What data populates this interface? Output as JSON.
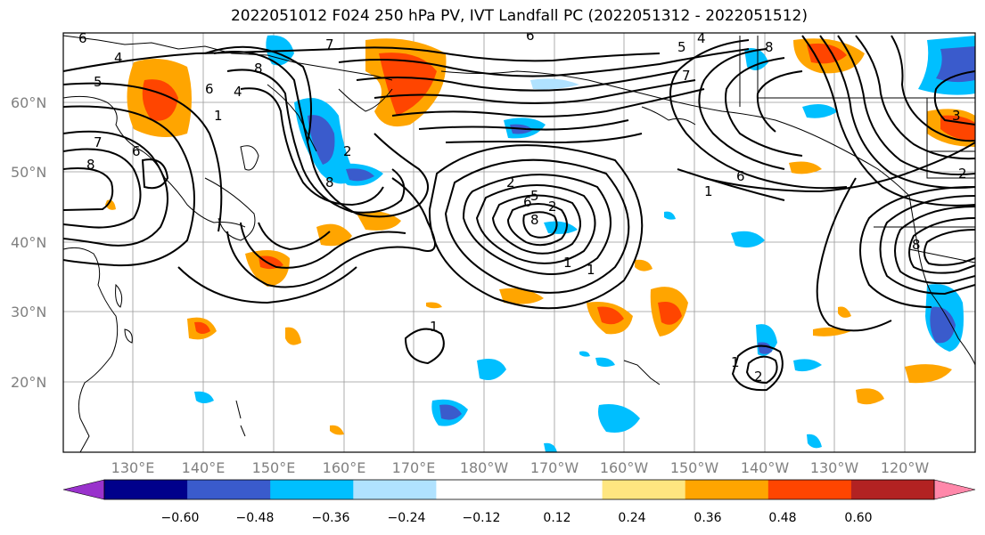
{
  "title": "2022051012 F024 250 hPa PV, IVT Landfall PC (2022051312 - 2022051512)",
  "lat_labels": [
    "60°N",
    "50°N",
    "40°N",
    "30°N",
    "20°N"
  ],
  "lon_labels": [
    "130°E",
    "140°E",
    "150°E",
    "160°E",
    "170°E",
    "180°W",
    "170°W",
    "160°W",
    "150°W",
    "140°W",
    "130°W",
    "120°W"
  ],
  "colorbar": {
    "colors": [
      "#9932cc",
      "#00008b",
      "#3a5bcc",
      "#00bfff",
      "#b0e2ff",
      "#ffffff",
      "#ffffff",
      "#ffe680",
      "#ffa500",
      "#ff4500",
      "#b22222",
      "#ff88aa"
    ],
    "tick_labels": [
      "−0.60",
      "−0.48",
      "−0.36",
      "−0.24",
      "−0.12",
      "0.12",
      "0.24",
      "0.36",
      "0.48",
      "0.60"
    ]
  },
  "contour_labels": [
    "6",
    "7",
    "5",
    "8",
    "4",
    "6",
    "1",
    "7",
    "8",
    "6",
    "4",
    "5",
    "6",
    "4",
    "7",
    "8",
    "6",
    "1",
    "2",
    "5",
    "2",
    "6",
    "8",
    "1",
    "1",
    "1",
    "2",
    "1",
    "8",
    "2",
    "3",
    "2",
    "8"
  ]
}
